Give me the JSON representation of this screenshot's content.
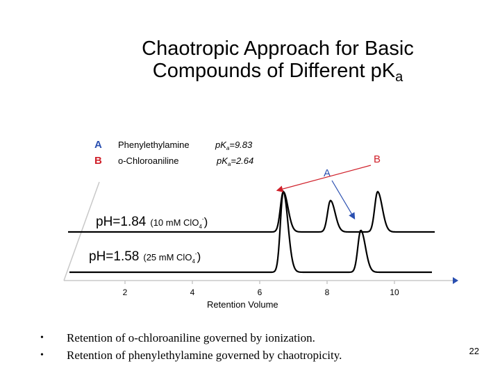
{
  "slide": {
    "title_main": "Chaotropic Approach for Basic Compounds of Different pK",
    "title_sub": "a",
    "bullets": [
      "Retention of o-chloroaniline governed by ionization.",
      "Retention of phenylethylamine governed by chaotropicity."
    ],
    "page_number": "22"
  },
  "chart_data": {
    "type": "line",
    "xlabel": "Retention Volume",
    "x_ticks": [
      2,
      4,
      6,
      8,
      10
    ],
    "legend": [
      {
        "letter": "A",
        "name": "Phenylethylamine",
        "pka_prefix": "pK",
        "pka_sub": "a",
        "pka_value": "=9.83",
        "color": "#d0202a"
      },
      {
        "letter": "B",
        "name": "o-Chloroaniline",
        "pka_prefix": "pK",
        "pka_sub": "a",
        "pka_value": "=2.64",
        "color": "#d0202a"
      }
    ],
    "label_color": "#2a4fb0",
    "series": [
      {
        "name": "pH=1.84",
        "condition": "(10 mM ClO",
        "anion_sub": "4",
        "anion_sup": "-",
        "close": ")",
        "peaks": [
          {
            "x": 6.7,
            "height": 1.0
          },
          {
            "x": 8.1,
            "height": 0.78
          },
          {
            "x": 9.5,
            "height": 1.0
          }
        ]
      },
      {
        "name": "pH=1.58",
        "condition": "(25 mM ClO",
        "anion_sub": "4",
        "anion_sup": "-",
        "close": ")",
        "peaks": [
          {
            "x": 6.7,
            "height": 1.0
          },
          {
            "x": 9.0,
            "height": 0.52
          }
        ]
      }
    ],
    "annotations": {
      "peak_label_a": "A",
      "peak_label_b": "B"
    }
  }
}
